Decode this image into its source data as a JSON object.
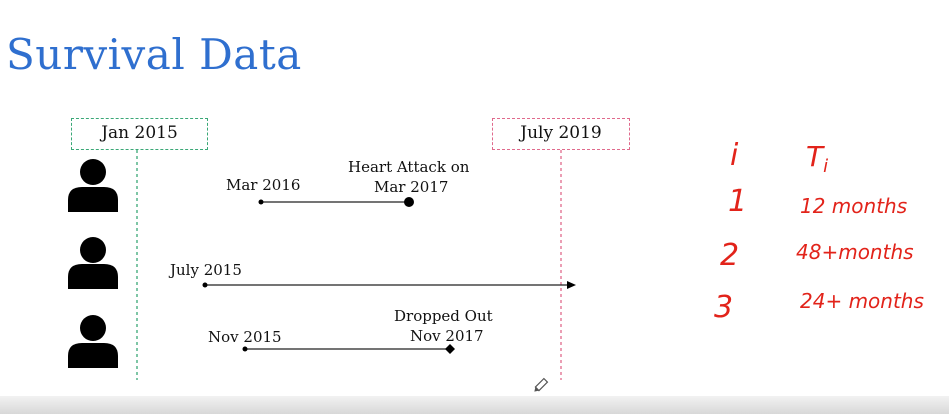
{
  "slide": {
    "title": "Survival Data",
    "start_label": "Jan 2015",
    "end_label": "July 2019"
  },
  "patients": [
    {
      "start_label": "Mar 2016",
      "end_label_line1": "Heart Attack on",
      "end_label_line2": "Mar 2017",
      "end_marker": "filled-circle"
    },
    {
      "start_label": "July 2015",
      "end_marker": "arrow"
    },
    {
      "start_label": "Nov 2015",
      "end_label_line1": "Dropped Out",
      "end_label_line2": "Nov 2017",
      "end_marker": "diamond"
    }
  ],
  "annotation": {
    "header_i": "i",
    "header_t": "T",
    "header_t_sub": "i",
    "rows": [
      {
        "i": "1",
        "t": "12 months"
      },
      {
        "i": "2",
        "t": "48+months"
      },
      {
        "i": "3",
        "t": "24+ months"
      }
    ]
  },
  "colors": {
    "title": "#2f6fcf",
    "start_box": "#3aa877",
    "end_box": "#e06a8c",
    "annotation": "#e2231a"
  }
}
